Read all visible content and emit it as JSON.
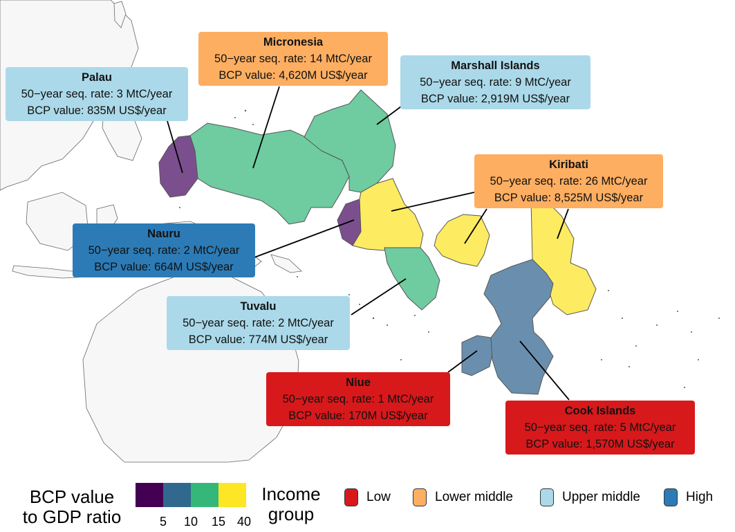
{
  "colors": {
    "ratio_ramp": [
      "#440154",
      "#31688e",
      "#35b779",
      "#fde725"
    ],
    "income": {
      "Low": "#d7191c",
      "Lower middle": "#fdae61",
      "Upper middle": "#abd9e9",
      "High": "#2c7bb6"
    },
    "eez_fill": {
      "palau": "#7b4f8e",
      "micronesia": "#6fcba0",
      "marshall": "#6fcba0",
      "nauru": "#7b4f8e",
      "kiribati": "#fdeb62",
      "tuvalu": "#6fcba0",
      "niue": "#6a8fae",
      "cook": "#6a8fae"
    }
  },
  "countries": [
    {
      "id": "palau",
      "name": "Palau",
      "seq_rate": "50−year seq. rate: 3 MtC/year",
      "bcp_value": "BCP value: 835M US$/year",
      "income": "Upper middle"
    },
    {
      "id": "micronesia",
      "name": "Micronesia",
      "seq_rate": "50−year seq. rate: 14 MtC/year",
      "bcp_value": "BCP value: 4,620M US$/year",
      "income": "Lower middle"
    },
    {
      "id": "marshall",
      "name": "Marshall Islands",
      "seq_rate": "50−year seq. rate: 9 MtC/year",
      "bcp_value": "BCP value: 2,919M US$/year",
      "income": "Upper middle"
    },
    {
      "id": "kiribati",
      "name": "Kiribati",
      "seq_rate": "50−year seq. rate: 26 MtC/year",
      "bcp_value": "BCP value: 8,525M US$/year",
      "income": "Lower middle"
    },
    {
      "id": "nauru",
      "name": "Nauru",
      "seq_rate": "50−year seq. rate: 2 MtC/year",
      "bcp_value": "BCP value: 664M US$/year",
      "income": "High"
    },
    {
      "id": "tuvalu",
      "name": "Tuvalu",
      "seq_rate": "50−year seq. rate: 2 MtC/year",
      "bcp_value": "BCP value: 774M US$/year",
      "income": "Upper middle"
    },
    {
      "id": "niue",
      "name": "Niue",
      "seq_rate": "50−year seq. rate: 1 MtC/year",
      "bcp_value": "BCP value: 170M US$/year",
      "income": "Low"
    },
    {
      "id": "cook",
      "name": "Cook Islands",
      "seq_rate": "50−year seq. rate: 5 MtC/year",
      "bcp_value": "BCP value: 1,570M US$/year",
      "income": "Low"
    }
  ],
  "legend": {
    "ratio_title_line1": "BCP value",
    "ratio_title_line2": "to GDP ratio",
    "ratio_ticks": [
      "5",
      "10",
      "15",
      "40"
    ],
    "income_title_line1": "Income",
    "income_title_line2": "group",
    "income_items": [
      "Low",
      "Lower middle",
      "Upper middle",
      "High"
    ]
  }
}
